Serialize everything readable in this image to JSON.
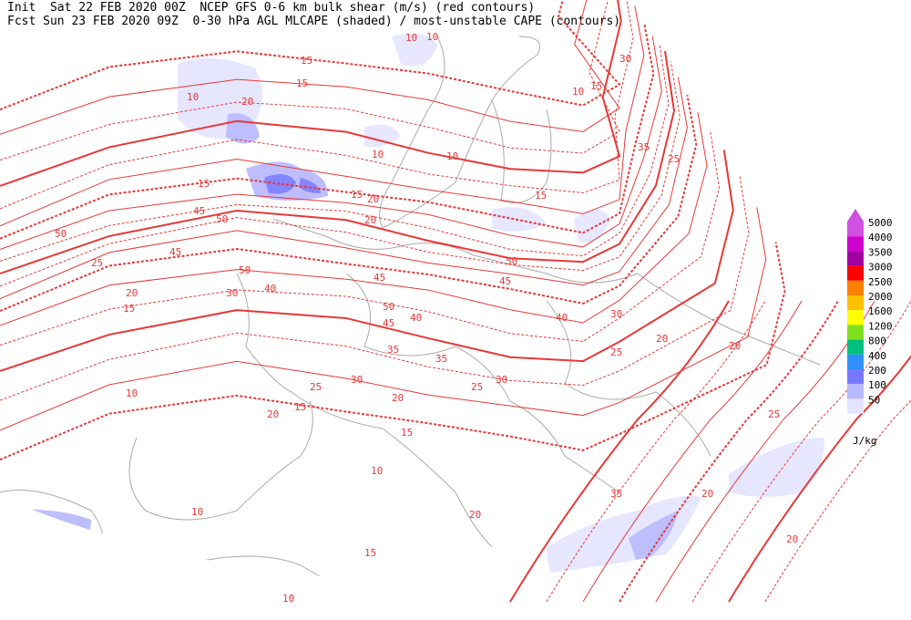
{
  "header": {
    "line1": "Init  Sat 22 FEB 2020 00Z  NCEP GFS 0-6 km bulk shear (m/s) (red contours)",
    "line2": "Fcst Sun 23 FEB 2020 09Z  0-30 hPa AGL MLCAPE (shaded) / most-unstable CAPE (contours)"
  },
  "legend": {
    "levels": [
      {
        "label": "5000",
        "color": "#d050e0"
      },
      {
        "label": "4000",
        "color": "#d000d0"
      },
      {
        "label": "3500",
        "color": "#a000a0"
      },
      {
        "label": "3000",
        "color": "#ff0000"
      },
      {
        "label": "2500",
        "color": "#ff8000"
      },
      {
        "label": "2000",
        "color": "#ffc000"
      },
      {
        "label": "1600",
        "color": "#ffff00"
      },
      {
        "label": "1200",
        "color": "#80e020"
      },
      {
        "label": "800",
        "color": "#00c080"
      },
      {
        "label": "400",
        "color": "#3090ff"
      },
      {
        "label": "200",
        "color": "#7878ff"
      },
      {
        "label": "100",
        "color": "#b8b8ff"
      },
      {
        "label": "50",
        "color": "#e4e4ff"
      }
    ],
    "unit": "J/kg"
  },
  "contour_labels": [
    10,
    15,
    20,
    10,
    15,
    30,
    15,
    10,
    35,
    25,
    15,
    20,
    45,
    50,
    50,
    25,
    20,
    15,
    45,
    50,
    40,
    45,
    30,
    50,
    45,
    40,
    35,
    45,
    50,
    40,
    30,
    25,
    20,
    35,
    30,
    25,
    10,
    15,
    20,
    10,
    10,
    10,
    15,
    20,
    15,
    25,
    30,
    20,
    20,
    35,
    15,
    10,
    10,
    10,
    15,
    20,
    25,
    20,
    20
  ]
}
